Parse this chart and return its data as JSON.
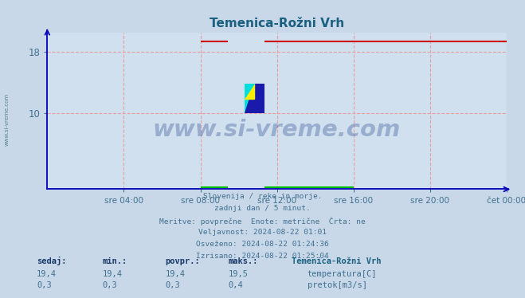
{
  "title": "Temenica-Rožni Vrh",
  "title_color": "#1a6080",
  "fig_bg_color": "#c8d8e8",
  "plot_bg_color": "#d0e0ee",
  "grid_color": "#e8a0a0",
  "axis_color": "#0000bb",
  "tick_color": "#407090",
  "ylim": [
    0,
    20.5
  ],
  "yticks": [
    10,
    18
  ],
  "xlim": [
    0,
    288
  ],
  "xtick_labels": [
    "sre 04:00",
    "sre 08:00",
    "sre 12:00",
    "sre 16:00",
    "sre 20:00",
    "čet 00:00"
  ],
  "xtick_positions": [
    48,
    96,
    144,
    192,
    240,
    288
  ],
  "temp_color": "#cc0000",
  "flow_color": "#00bb00",
  "temp_value": 19.4,
  "flow_value": 0.3,
  "temp_max": "19,5",
  "flow_max": "0,4",
  "temp_min": "19,4",
  "flow_min": "0,3",
  "temp_avg": "19,4",
  "flow_avg": "0,3",
  "temp_sedaj": "19,4",
  "flow_sedaj": "0,3",
  "temp_seg1_start": 96,
  "temp_seg1_end": 113,
  "temp_seg2_start": 136,
  "temp_seg2_end": 288,
  "flow_seg1_start": 96,
  "flow_seg1_end": 113,
  "flow_seg2_start": 136,
  "flow_seg2_end": 192,
  "watermark": "www.si-vreme.com",
  "watermark_color": "#1a3a8a",
  "watermark_alpha": 0.3,
  "info_lines": [
    "Slovenija / reke in morje.",
    "zadnji dan / 5 minut.",
    "Meritve: povprečne  Enote: metrične  Črta: ne",
    "Veljavnost: 2024-08-22 01:01",
    "Osveženo: 2024-08-22 01:24:36",
    "Izrisano: 2024-08-22 01:25:04"
  ],
  "info_color": "#407090",
  "sidebar_text": "www.si-vreme.com",
  "sidebar_color": "#407070",
  "station_name": "Temenica-Rožni Vrh",
  "header_sedaj": "sedaj:",
  "header_min": "min.:",
  "header_povpr": "povpr.:",
  "header_maks": "maks.:",
  "legend_temp": "temperatura[C]",
  "legend_flow": "pretok[m3/s]"
}
